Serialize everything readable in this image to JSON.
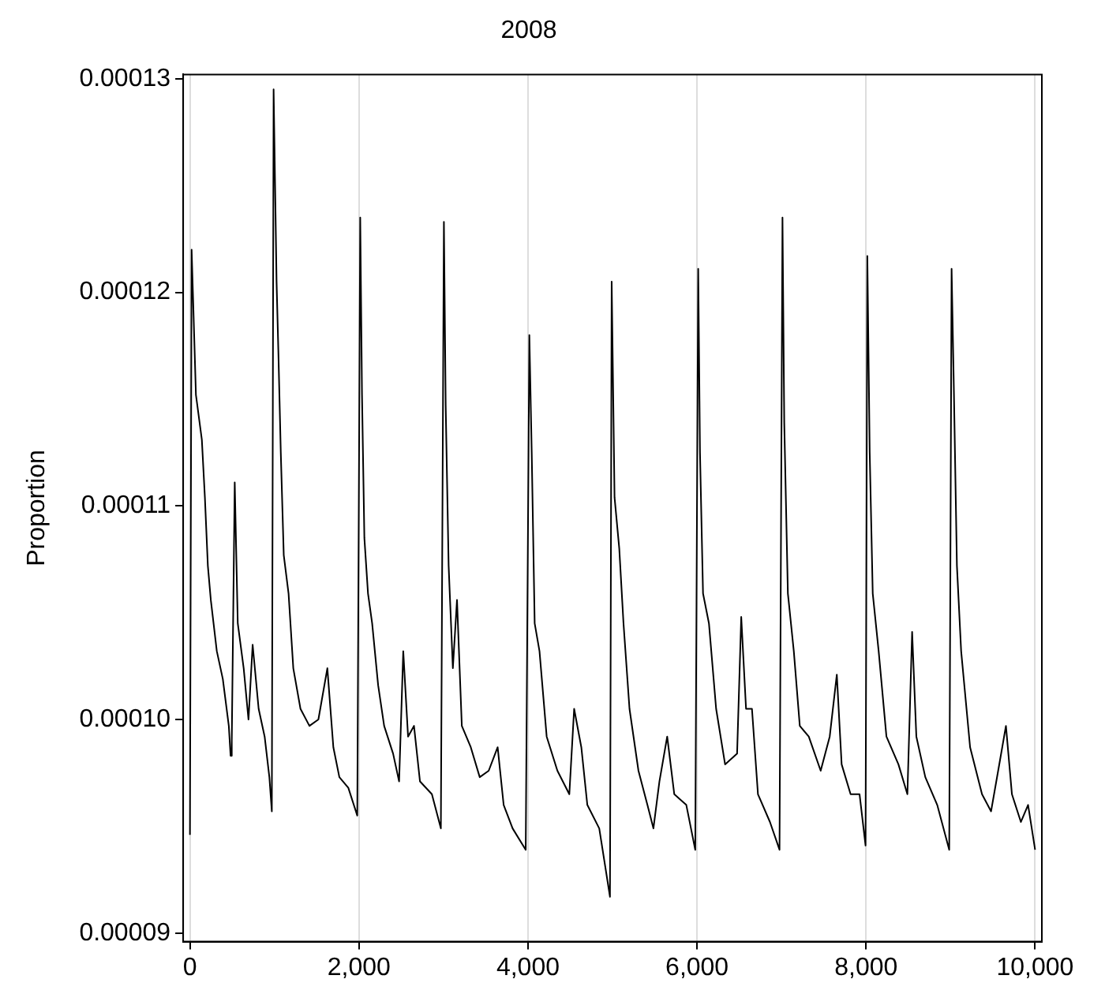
{
  "chart_data": {
    "type": "line",
    "title": "2008",
    "ylabel": "Proportion",
    "x": [
      0,
      20,
      35,
      71,
      141,
      177,
      212,
      247,
      318,
      389,
      460,
      481,
      495,
      530,
      566,
      636,
      693,
      742,
      813,
      884,
      940,
      969,
      990,
      1025,
      1046,
      1075,
      1110,
      1167,
      1223,
      1308,
      1414,
      1520,
      1626,
      1697,
      1768,
      1874,
      1980,
      2015,
      2036,
      2064,
      2107,
      2156,
      2227,
      2298,
      2404,
      2475,
      2524,
      2581,
      2651,
      2722,
      2863,
      2969,
      3005,
      3026,
      3061,
      3111,
      3160,
      3217,
      3323,
      3429,
      3535,
      3641,
      3712,
      3818,
      3973,
      4016,
      4044,
      4079,
      4136,
      4221,
      4348,
      4489,
      4546,
      4631,
      4702,
      4843,
      4970,
      4990,
      5024,
      5080,
      5130,
      5201,
      5307,
      5413,
      5484,
      5555,
      5647,
      5731,
      5873,
      5979,
      6014,
      6035,
      6071,
      6141,
      6226,
      6332,
      6474,
      6523,
      6580,
      6650,
      6721,
      6863,
      6976,
      7011,
      7032,
      7075,
      7145,
      7216,
      7322,
      7463,
      7570,
      7654,
      7711,
      7817,
      7923,
      7994,
      8015,
      8043,
      8079,
      8149,
      8241,
      8383,
      8489,
      8545,
      8595,
      8701,
      8842,
      8984,
      9012,
      9040,
      9075,
      9125,
      9231,
      9372,
      9479,
      9585,
      9655,
      9726,
      9832,
      9917,
      10000
    ],
    "series": [
      {
        "color": "#000000",
        "values": [
          9.46e-05,
          0.000122,
          0.00012,
          0.0001152,
          0.0001131,
          0.0001104,
          0.0001072,
          0.0001056,
          0.0001032,
          0.0001019,
          9.97e-05,
          9.83e-05,
          9.9e-05,
          0.0001111,
          0.0001045,
          0.0001024,
          0.0001,
          0.0001035,
          0.0001005,
          9.92e-05,
          9.73e-05,
          9.57e-05,
          0.0001295,
          0.0001205,
          0.0001173,
          0.0001125,
          0.0001077,
          0.0001059,
          0.0001024,
          0.0001005,
          9.97e-05,
          0.0001,
          0.0001024,
          9.87e-05,
          9.73e-05,
          9.68e-05,
          9.55e-05,
          0.0001235,
          0.0001152,
          0.0001085,
          0.0001059,
          0.0001045,
          0.0001016,
          9.97e-05,
          9.84e-05,
          9.71e-05,
          0.0001032,
          9.92e-05,
          9.97e-05,
          9.71e-05,
          9.65e-05,
          9.49e-05,
          0.0001233,
          0.0001147,
          0.0001072,
          0.0001024,
          0.0001056,
          9.97e-05,
          9.87e-05,
          9.73e-05,
          9.76e-05,
          9.87e-05,
          9.6e-05,
          9.49e-05,
          9.39e-05,
          0.000118,
          0.0001125,
          0.0001045,
          0.0001032,
          9.92e-05,
          9.76e-05,
          9.65e-05,
          0.0001005,
          9.87e-05,
          9.6e-05,
          9.49e-05,
          9.17e-05,
          0.0001205,
          0.0001104,
          0.000108,
          0.0001045,
          0.0001005,
          9.76e-05,
          9.6e-05,
          9.49e-05,
          9.71e-05,
          9.92e-05,
          9.65e-05,
          9.6e-05,
          9.39e-05,
          0.0001211,
          0.0001125,
          0.0001059,
          0.0001045,
          0.0001005,
          9.79e-05,
          9.84e-05,
          0.0001048,
          0.0001005,
          0.0001005,
          9.65e-05,
          9.52e-05,
          9.39e-05,
          0.0001235,
          0.0001139,
          0.0001059,
          0.0001032,
          9.97e-05,
          9.92e-05,
          9.76e-05,
          9.92e-05,
          0.0001021,
          9.79e-05,
          9.65e-05,
          9.65e-05,
          9.41e-05,
          0.0001217,
          0.0001125,
          0.0001059,
          0.0001032,
          9.92e-05,
          9.79e-05,
          9.65e-05,
          0.0001041,
          9.92e-05,
          9.73e-05,
          9.6e-05,
          9.39e-05,
          0.0001211,
          0.0001152,
          0.0001072,
          0.0001032,
          9.87e-05,
          9.65e-05,
          9.57e-05,
          9.81e-05,
          9.97e-05,
          9.65e-05,
          9.52e-05,
          9.6e-05,
          9.39e-05
        ]
      }
    ],
    "xlim": [
      -80,
      10080
    ],
    "ylim": [
      8.96e-05,
      0.0001302
    ],
    "xticks": [
      0,
      {
        "value": 2000,
        "label": "2,000"
      },
      {
        "value": 4000,
        "label": "4,000"
      },
      {
        "value": 6000,
        "label": "6,000"
      },
      {
        "value": 8000,
        "label": "8,000"
      },
      {
        "value": 10000,
        "label": "10,000"
      }
    ],
    "yticks": [
      {
        "value": 9e-05,
        "label": "0.00009"
      },
      {
        "value": 0.0001,
        "label": "0.00010"
      },
      {
        "value": 0.00011,
        "label": "0.00011"
      },
      {
        "value": 0.00012,
        "label": "0.00012"
      },
      {
        "value": 0.00013,
        "label": "0.00013"
      }
    ],
    "grid": "x",
    "legend": false,
    "marker": "none",
    "line_style": "solid"
  }
}
